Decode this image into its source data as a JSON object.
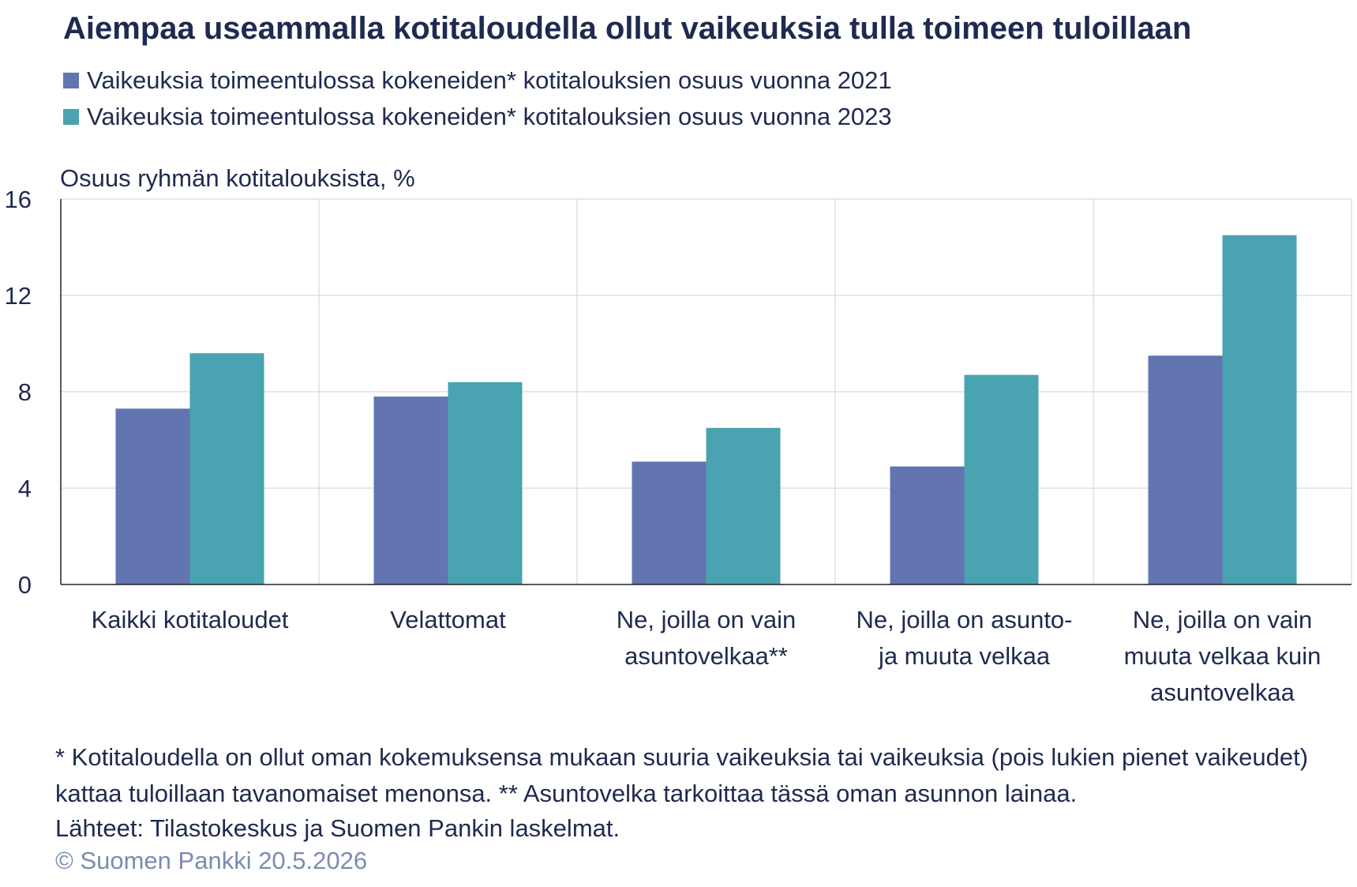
{
  "title": "Aiempaa useammalla kotitaloudella ollut vaikeuksia tulla toimeen tuloillaan",
  "legend": [
    {
      "label": "Vaikeuksia toimeentulossa kokeneiden* kotitalouksien osuus vuonna 2021",
      "color": "#6275b0"
    },
    {
      "label": "Vaikeuksia toimeentulossa kokeneiden* kotitalouksien osuus vuonna 2023",
      "color": "#49a3b0"
    }
  ],
  "footnote_1": "* Kotitaloudella on ollut oman kokemuksensa mukaan suuria vaikeuksia tai vaikeuksia (pois lukien pienet vaikeudet) kattaa tuloillaan tavanomaiset menonsa. ** Asuntovelka tarkoittaa tässä oman asunnon lainaa.",
  "footnote_2": "Lähteet: Tilastokeskus ja Suomen Pankin laskelmat.",
  "copyright": "© Suomen Pankki 20.5.2026",
  "chart_data": {
    "type": "bar",
    "title": "Aiempaa useammalla kotitaloudella ollut vaikeuksia tulla toimeen tuloillaan",
    "ylabel": "Osuus ryhmän kotitalouksista, %",
    "xlabel": "",
    "ylim": [
      0,
      16
    ],
    "yticks": [
      0,
      4,
      8,
      12,
      16
    ],
    "grid": true,
    "legend_position": "top-left",
    "categories": [
      [
        "Kaikki kotitaloudet"
      ],
      [
        "Velattomat"
      ],
      [
        "Ne, joilla on vain",
        "asuntovelkaa**"
      ],
      [
        "Ne, joilla on asunto-",
        "ja muuta velkaa"
      ],
      [
        "Ne, joilla on vain",
        "muuta velkaa kuin",
        "asuntovelkaa"
      ]
    ],
    "series": [
      {
        "name": "Vaikeuksia toimeentulossa kokeneiden* kotitalouksien osuus vuonna 2021",
        "color": "#6275b0",
        "values": [
          7.3,
          7.8,
          5.1,
          4.9,
          9.5
        ]
      },
      {
        "name": "Vaikeuksia toimeentulossa kokeneiden* kotitalouksien osuus vuonna 2023",
        "color": "#49a3b0",
        "values": [
          9.6,
          8.4,
          6.5,
          8.7,
          14.5
        ]
      }
    ]
  }
}
